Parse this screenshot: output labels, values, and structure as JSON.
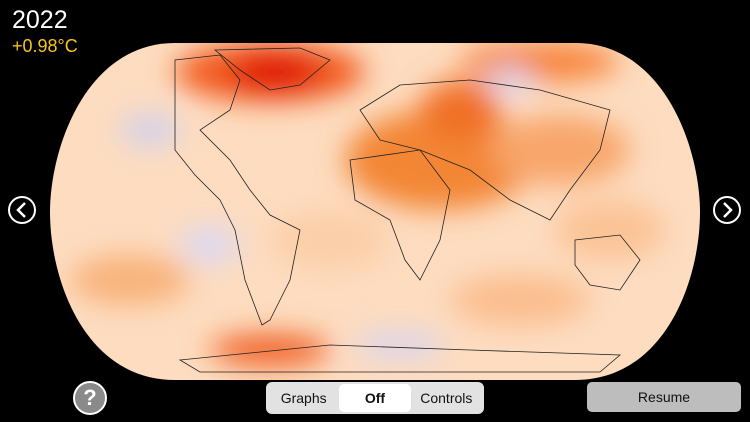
{
  "header": {
    "year": "2022",
    "anomaly": "+0.98°C"
  },
  "controls": {
    "help": "?",
    "segments": [
      "Graphs",
      "Off",
      "Controls"
    ],
    "selected": 1,
    "resume": "Resume"
  }
}
